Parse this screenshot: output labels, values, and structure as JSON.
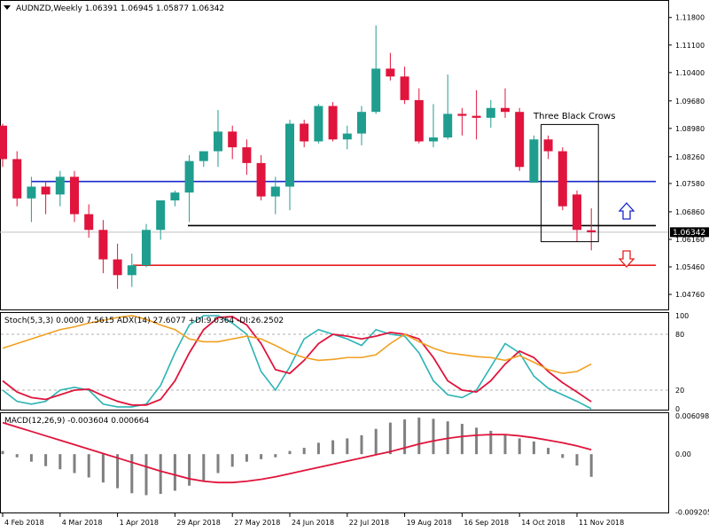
{
  "header": {
    "main": "AUDNZD,Weekly  1.06391 1.06945 1.05877 1.06342",
    "stoch": "Stoch(5,3,3) 0.0000 7.5615  ADX(14) 27.6077 +DI:9.0364 -DI:26.2502",
    "macd": "MACD(12,26,9) -0.003604 0.000664"
  },
  "annotation": {
    "text": "Three Black Crows"
  },
  "colors": {
    "bull": "#1f9e8f",
    "bear": "#e0143c",
    "support_blue": "#1a27c9",
    "support_black": "#000000",
    "support_red": "#e61e1e",
    "arrow_up": "#1a27c9",
    "arrow_down": "#e61e1e",
    "stoch_k": "#2bb3b5",
    "stoch_d": "#e0143c",
    "adx": "#f0a020",
    "macd_hist": "#808080",
    "macd_signal": "#e0143c"
  },
  "chart_data": [
    {
      "type": "candlestick",
      "panel": "price",
      "ylim": [
        1.044,
        1.122
      ],
      "y_ticks": [
        "1.11800",
        "1.11100",
        "1.10400",
        "1.09680",
        "1.08980",
        "1.08260",
        "1.07580",
        "1.06860",
        "1.06160",
        "1.05460",
        "1.04760"
      ],
      "current_price_label": "1.06342",
      "current_price": 1.06342,
      "ohlc": [
        [
          1.0905,
          1.091,
          1.08,
          1.082
        ],
        [
          1.082,
          1.084,
          1.07,
          1.072
        ],
        [
          1.072,
          1.0775,
          1.066,
          1.075
        ],
        [
          1.075,
          1.0765,
          1.068,
          1.073
        ],
        [
          1.073,
          1.079,
          1.07,
          1.0775
        ],
        [
          1.0775,
          1.079,
          1.066,
          1.068
        ],
        [
          1.068,
          1.0705,
          1.062,
          1.064
        ],
        [
          1.064,
          1.0665,
          1.053,
          1.0565
        ],
        [
          1.0565,
          1.0605,
          1.049,
          1.0525
        ],
        [
          1.0525,
          1.058,
          1.0495,
          1.055
        ],
        [
          1.055,
          1.0655,
          1.0545,
          1.064
        ],
        [
          1.064,
          1.0715,
          1.0615,
          1.0715
        ],
        [
          1.0715,
          1.074,
          1.07,
          1.0735
        ],
        [
          1.0735,
          1.083,
          1.066,
          1.0815
        ],
        [
          1.0815,
          1.084,
          1.08,
          1.084
        ],
        [
          1.084,
          1.0945,
          1.08,
          1.089
        ],
        [
          1.089,
          1.0905,
          1.082,
          1.085
        ],
        [
          1.085,
          1.087,
          1.078,
          1.081
        ],
        [
          1.081,
          1.083,
          1.0715,
          1.0725
        ],
        [
          1.0725,
          1.0775,
          1.068,
          1.075
        ],
        [
          1.075,
          1.092,
          1.069,
          1.091
        ],
        [
          1.091,
          1.092,
          1.085,
          1.0865
        ],
        [
          1.0865,
          1.096,
          1.086,
          1.0955
        ],
        [
          1.0955,
          1.0965,
          1.0865,
          1.087
        ],
        [
          1.087,
          1.0905,
          1.0845,
          1.0885
        ],
        [
          1.0885,
          1.0955,
          1.0855,
          1.094
        ],
        [
          1.094,
          1.116,
          1.0935,
          1.105
        ],
        [
          1.105,
          1.109,
          1.102,
          1.103
        ],
        [
          1.103,
          1.1055,
          1.096,
          1.097
        ],
        [
          1.097,
          1.1,
          1.086,
          1.0865
        ],
        [
          1.0865,
          1.096,
          1.085,
          1.0875
        ],
        [
          1.0875,
          1.1035,
          1.087,
          1.0935
        ],
        [
          1.0935,
          1.095,
          1.088,
          1.093
        ],
        [
          1.093,
          1.0995,
          1.087,
          1.0925
        ],
        [
          1.0925,
          1.097,
          1.09,
          1.095
        ],
        [
          1.095,
          1.1,
          1.0925,
          1.094
        ],
        [
          1.094,
          1.095,
          1.079,
          1.08
        ],
        [
          1.076,
          1.088,
          1.076,
          1.087
        ],
        [
          1.087,
          1.088,
          1.082,
          1.084
        ],
        [
          1.084,
          1.085,
          1.069,
          1.07
        ],
        [
          1.073,
          1.074,
          1.061,
          1.064
        ],
        [
          1.0639,
          1.0695,
          1.0588,
          1.0634
        ]
      ],
      "levels": [
        {
          "name": "blue-resistance-line",
          "price": 1.0763
        },
        {
          "name": "black-support-line",
          "price": 1.0651
        },
        {
          "name": "red-support-line",
          "price": 1.055
        }
      ],
      "annotation_box": {
        "from_bar": 38,
        "to_bar": 41,
        "price_high": 1.0908,
        "price_low": 1.061
      }
    },
    {
      "type": "line",
      "panel": "stochastic-adx",
      "ylim": [
        0,
        100
      ],
      "y_ticks": [
        "100",
        "80",
        "20",
        "0"
      ],
      "levels": [
        80,
        20
      ],
      "series": [
        {
          "name": "Stoch main",
          "values": [
            20,
            8,
            5,
            8,
            20,
            23,
            20,
            5,
            2,
            2,
            5,
            25,
            60,
            90,
            105,
            100,
            92,
            80,
            40,
            20,
            45,
            75,
            85,
            80,
            75,
            68,
            85,
            80,
            78,
            60,
            30,
            15,
            12,
            20,
            45,
            70,
            60,
            35,
            22,
            15,
            8,
            0
          ]
        },
        {
          "name": "Stoch signal",
          "values": [
            30,
            18,
            12,
            10,
            15,
            20,
            21,
            14,
            8,
            4,
            4,
            10,
            30,
            60,
            85,
            98,
            99,
            90,
            70,
            42,
            38,
            52,
            70,
            80,
            78,
            75,
            78,
            82,
            80,
            75,
            55,
            30,
            20,
            18,
            30,
            48,
            62,
            55,
            40,
            28,
            18,
            7.5615
          ]
        },
        {
          "name": "ADX",
          "values": [
            65,
            70,
            75,
            80,
            85,
            88,
            92,
            95,
            98,
            100,
            96,
            90,
            85,
            75,
            72,
            72,
            75,
            78,
            75,
            68,
            60,
            55,
            52,
            53,
            55,
            55,
            58,
            70,
            80,
            72,
            65,
            60,
            58,
            56,
            55,
            52,
            57,
            50,
            42,
            38,
            40,
            48
          ]
        }
      ]
    },
    {
      "type": "bar",
      "panel": "macd",
      "ylim": [
        -0.00925,
        0.00635
      ],
      "y_ticks": [
        "0.006098",
        "0.00",
        "-0.009205"
      ],
      "series": [
        {
          "name": "MACD histogram",
          "values": [
            0.0005,
            -0.0005,
            -0.0012,
            -0.0019,
            -0.0024,
            -0.003,
            -0.0037,
            -0.0045,
            -0.0054,
            -0.0062,
            -0.0065,
            -0.0063,
            -0.0058,
            -0.005,
            -0.0042,
            -0.003,
            -0.002,
            -0.0012,
            -0.0008,
            -0.0005,
            0.0005,
            0.001,
            0.0018,
            0.0022,
            0.0025,
            0.003,
            0.004,
            0.005,
            0.0055,
            0.0058,
            0.0056,
            0.0052,
            0.0048,
            0.0042,
            0.0037,
            0.003,
            0.0025,
            0.002,
            0.001,
            -0.0006,
            -0.0018,
            -0.0036
          ]
        },
        {
          "name": "Signal",
          "values": [
            0.005,
            0.0043,
            0.0036,
            0.0029,
            0.0022,
            0.0015,
            0.0008,
            0.0001,
            -0.0006,
            -0.0013,
            -0.002,
            -0.0027,
            -0.0033,
            -0.0039,
            -0.0043,
            -0.0045,
            -0.0045,
            -0.0043,
            -0.004,
            -0.0036,
            -0.0031,
            -0.0026,
            -0.0021,
            -0.0016,
            -0.0011,
            -0.0006,
            -0.0001,
            0.0004,
            0.001,
            0.0016,
            0.0021,
            0.0025,
            0.0028,
            0.003,
            0.0031,
            0.0031,
            0.0029,
            0.0026,
            0.0022,
            0.0018,
            0.0013,
            0.0007
          ]
        }
      ]
    }
  ],
  "x_axis": {
    "labels": [
      {
        "text": "4 Feb 2018",
        "bar": 0
      },
      {
        "text": "4 Mar 2018",
        "bar": 4
      },
      {
        "text": "1 Apr 2018",
        "bar": 8
      },
      {
        "text": "29 Apr 2018",
        "bar": 12
      },
      {
        "text": "27 May 2018",
        "bar": 16
      },
      {
        "text": "24 Jun 2018",
        "bar": 20
      },
      {
        "text": "22 Jul 2018",
        "bar": 24
      },
      {
        "text": "19 Aug 2018",
        "bar": 28
      },
      {
        "text": "16 Sep 2018",
        "bar": 32
      },
      {
        "text": "14 Oct 2018",
        "bar": 36
      },
      {
        "text": "11 Nov 2018",
        "bar": 40
      }
    ]
  }
}
